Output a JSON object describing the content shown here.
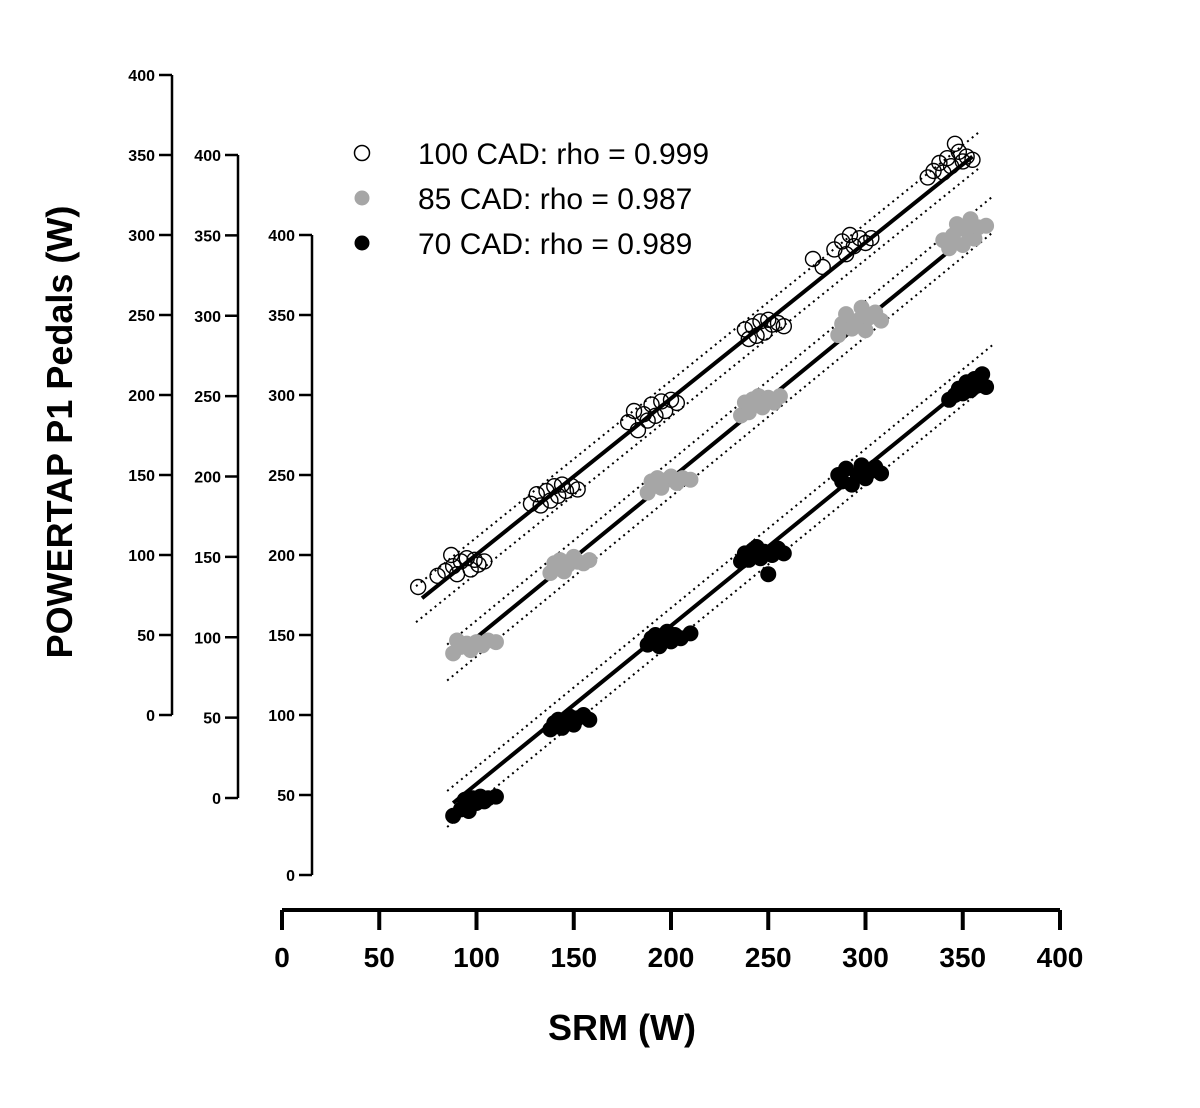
{
  "chart_data": {
    "type": "scatter",
    "xlabel": "SRM (W)",
    "ylabel": "POWERTAP P1 Pedals (W)",
    "xlim": [
      0,
      400
    ],
    "xticks": [
      0,
      50,
      100,
      150,
      200,
      250,
      300,
      350,
      400
    ],
    "y_axes": [
      {
        "series": "100 CAD",
        "ylim": [
          0,
          400
        ],
        "ticks": [
          0,
          50,
          100,
          150,
          200,
          250,
          300,
          350,
          400
        ]
      },
      {
        "series": "85 CAD",
        "ylim": [
          0,
          400
        ],
        "ticks": [
          0,
          50,
          100,
          150,
          200,
          250,
          300,
          350,
          400
        ]
      },
      {
        "series": "70 CAD",
        "ylim": [
          0,
          400
        ],
        "ticks": [
          0,
          50,
          100,
          150,
          200,
          250,
          300,
          350,
          400
        ]
      }
    ],
    "grid": false,
    "legend_position": "top-left",
    "series": [
      {
        "name": "100 CAD: rho = 0.999",
        "marker": "open-circle",
        "color": "#000000",
        "fit": {
          "x": [
            72,
            355
          ],
          "y": [
            73,
            349
          ]
        },
        "points": [
          [
            70,
            80
          ],
          [
            80,
            87
          ],
          [
            84,
            90
          ],
          [
            87,
            100
          ],
          [
            88,
            93
          ],
          [
            90,
            88
          ],
          [
            92,
            96
          ],
          [
            95,
            98
          ],
          [
            97,
            91
          ],
          [
            99,
            97
          ],
          [
            101,
            94
          ],
          [
            104,
            96
          ],
          [
            128,
            132
          ],
          [
            131,
            138
          ],
          [
            133,
            131
          ],
          [
            136,
            140
          ],
          [
            138,
            134
          ],
          [
            140,
            143
          ],
          [
            142,
            137
          ],
          [
            144,
            144
          ],
          [
            146,
            140
          ],
          [
            149,
            143
          ],
          [
            152,
            141
          ],
          [
            178,
            183
          ],
          [
            181,
            190
          ],
          [
            183,
            178
          ],
          [
            186,
            188
          ],
          [
            188,
            184
          ],
          [
            190,
            194
          ],
          [
            192,
            187
          ],
          [
            195,
            196
          ],
          [
            197,
            190
          ],
          [
            200,
            197
          ],
          [
            203,
            195
          ],
          [
            238,
            241
          ],
          [
            240,
            235
          ],
          [
            242,
            243
          ],
          [
            244,
            237
          ],
          [
            246,
            246
          ],
          [
            248,
            239
          ],
          [
            250,
            247
          ],
          [
            252,
            244
          ],
          [
            255,
            245
          ],
          [
            258,
            243
          ],
          [
            273,
            285
          ],
          [
            278,
            280
          ],
          [
            284,
            291
          ],
          [
            288,
            296
          ],
          [
            290,
            288
          ],
          [
            292,
            300
          ],
          [
            294,
            293
          ],
          [
            297,
            298
          ],
          [
            300,
            295
          ],
          [
            303,
            298
          ],
          [
            332,
            336
          ],
          [
            335,
            340
          ],
          [
            338,
            345
          ],
          [
            340,
            339
          ],
          [
            342,
            348
          ],
          [
            344,
            343
          ],
          [
            346,
            357
          ],
          [
            348,
            352
          ],
          [
            350,
            346
          ],
          [
            352,
            349
          ],
          [
            355,
            347
          ]
        ]
      },
      {
        "name": "85 CAD: rho = 0.987",
        "marker": "filled-circle",
        "color": "#a6a6a6",
        "fit": {
          "x": [
            88,
            362
          ],
          "y": [
            88,
            359
          ]
        },
        "points": [
          [
            88,
            90
          ],
          [
            90,
            98
          ],
          [
            92,
            94
          ],
          [
            95,
            96
          ],
          [
            97,
            92
          ],
          [
            100,
            97
          ],
          [
            103,
            95
          ],
          [
            106,
            98
          ],
          [
            110,
            97
          ],
          [
            138,
            140
          ],
          [
            140,
            146
          ],
          [
            143,
            148
          ],
          [
            145,
            141
          ],
          [
            147,
            145
          ],
          [
            150,
            150
          ],
          [
            152,
            147
          ],
          [
            155,
            146
          ],
          [
            158,
            148
          ],
          [
            188,
            190
          ],
          [
            190,
            197
          ],
          [
            193,
            199
          ],
          [
            195,
            193
          ],
          [
            198,
            198
          ],
          [
            200,
            200
          ],
          [
            203,
            196
          ],
          [
            206,
            199
          ],
          [
            210,
            198
          ],
          [
            236,
            238
          ],
          [
            238,
            246
          ],
          [
            240,
            240
          ],
          [
            242,
            248
          ],
          [
            245,
            250
          ],
          [
            247,
            243
          ],
          [
            250,
            249
          ],
          [
            253,
            246
          ],
          [
            256,
            250
          ],
          [
            286,
            288
          ],
          [
            288,
            295
          ],
          [
            290,
            301
          ],
          [
            293,
            292
          ],
          [
            296,
            297
          ],
          [
            298,
            305
          ],
          [
            300,
            291
          ],
          [
            302,
            299
          ],
          [
            305,
            302
          ],
          [
            308,
            297
          ],
          [
            340,
            347
          ],
          [
            343,
            342
          ],
          [
            345,
            350
          ],
          [
            347,
            357
          ],
          [
            350,
            344
          ],
          [
            352,
            353
          ],
          [
            354,
            360
          ],
          [
            356,
            348
          ],
          [
            358,
            355
          ],
          [
            362,
            356
          ]
        ]
      },
      {
        "name": "70 CAD: rho = 0.989",
        "marker": "filled-circle",
        "color": "#000000",
        "fit": {
          "x": [
            88,
            362
          ],
          "y": [
            45,
            316
          ]
        },
        "points": [
          [
            88,
            37
          ],
          [
            92,
            41
          ],
          [
            94,
            47
          ],
          [
            96,
            40
          ],
          [
            98,
            48
          ],
          [
            100,
            45
          ],
          [
            102,
            49
          ],
          [
            104,
            46
          ],
          [
            106,
            48
          ],
          [
            110,
            49
          ],
          [
            138,
            91
          ],
          [
            140,
            95
          ],
          [
            142,
            97
          ],
          [
            144,
            92
          ],
          [
            146,
            96
          ],
          [
            148,
            99
          ],
          [
            150,
            94
          ],
          [
            152,
            98
          ],
          [
            155,
            100
          ],
          [
            158,
            97
          ],
          [
            188,
            144
          ],
          [
            190,
            148
          ],
          [
            192,
            150
          ],
          [
            194,
            143
          ],
          [
            196,
            147
          ],
          [
            198,
            152
          ],
          [
            200,
            146
          ],
          [
            202,
            150
          ],
          [
            205,
            148
          ],
          [
            210,
            151
          ],
          [
            236,
            196
          ],
          [
            238,
            201
          ],
          [
            240,
            197
          ],
          [
            242,
            203
          ],
          [
            244,
            205
          ],
          [
            246,
            198
          ],
          [
            248,
            202
          ],
          [
            250,
            188
          ],
          [
            252,
            200
          ],
          [
            255,
            204
          ],
          [
            258,
            201
          ],
          [
            286,
            250
          ],
          [
            288,
            246
          ],
          [
            290,
            254
          ],
          [
            293,
            244
          ],
          [
            296,
            250
          ],
          [
            298,
            256
          ],
          [
            300,
            248
          ],
          [
            302,
            252
          ],
          [
            305,
            255
          ],
          [
            308,
            251
          ],
          [
            343,
            297
          ],
          [
            346,
            300
          ],
          [
            348,
            304
          ],
          [
            350,
            301
          ],
          [
            352,
            308
          ],
          [
            354,
            303
          ],
          [
            356,
            310
          ],
          [
            358,
            306
          ],
          [
            360,
            313
          ],
          [
            362,
            305
          ]
        ]
      }
    ]
  }
}
